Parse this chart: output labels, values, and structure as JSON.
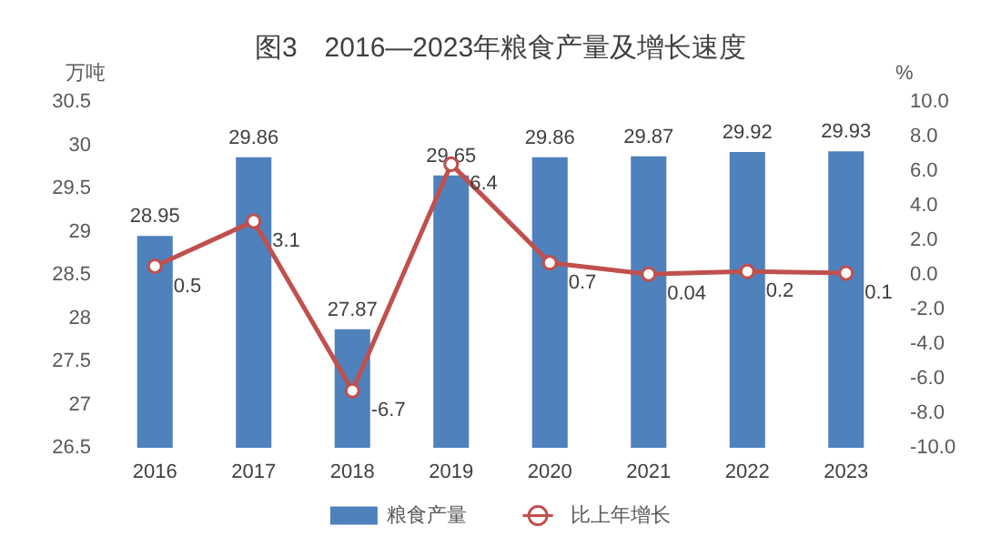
{
  "chart_data": {
    "type": "bar",
    "title": "图3　2016—2023年粮食产量及增长速度",
    "ylabel": "万吨",
    "y2label": "%",
    "categories": [
      "2016",
      "2017",
      "2018",
      "2019",
      "2020",
      "2021",
      "2022",
      "2023"
    ],
    "series": [
      {
        "name": "粮食产量",
        "color": "#4f81bd",
        "values": [
          28.95,
          29.86,
          27.87,
          29.65,
          29.86,
          29.87,
          29.92,
          29.93
        ]
      },
      {
        "name": "比上年增长",
        "type": "line",
        "axis": "y2",
        "color": "#c0504d",
        "marker": "circle",
        "values": [
          0.5,
          3.1,
          -6.7,
          6.4,
          0.7,
          0.04,
          0.2,
          0.1
        ]
      }
    ],
    "ylim": [
      26.5,
      30.5
    ],
    "yticks": [
      26.5,
      27,
      27.5,
      28,
      28.5,
      29,
      29.5,
      30,
      30.5
    ],
    "y2lim": [
      -10,
      10
    ],
    "y2ticks": [
      {
        "value": -10,
        "label": "-10.0"
      },
      {
        "value": -8,
        "label": "-8.0"
      },
      {
        "value": -6,
        "label": "-6.0"
      },
      {
        "value": -4,
        "label": "-4.0"
      },
      {
        "value": -2,
        "label": "-2.0"
      },
      {
        "value": 0,
        "label": "0.0"
      },
      {
        "value": 2,
        "label": "2.0"
      },
      {
        "value": 4,
        "label": "4.0"
      },
      {
        "value": 6,
        "label": "6.0"
      },
      {
        "value": 8,
        "label": "8.0"
      },
      {
        "value": 10,
        "label": "10.0"
      }
    ],
    "data_labels": true,
    "grid": false,
    "legend": "bottom"
  }
}
